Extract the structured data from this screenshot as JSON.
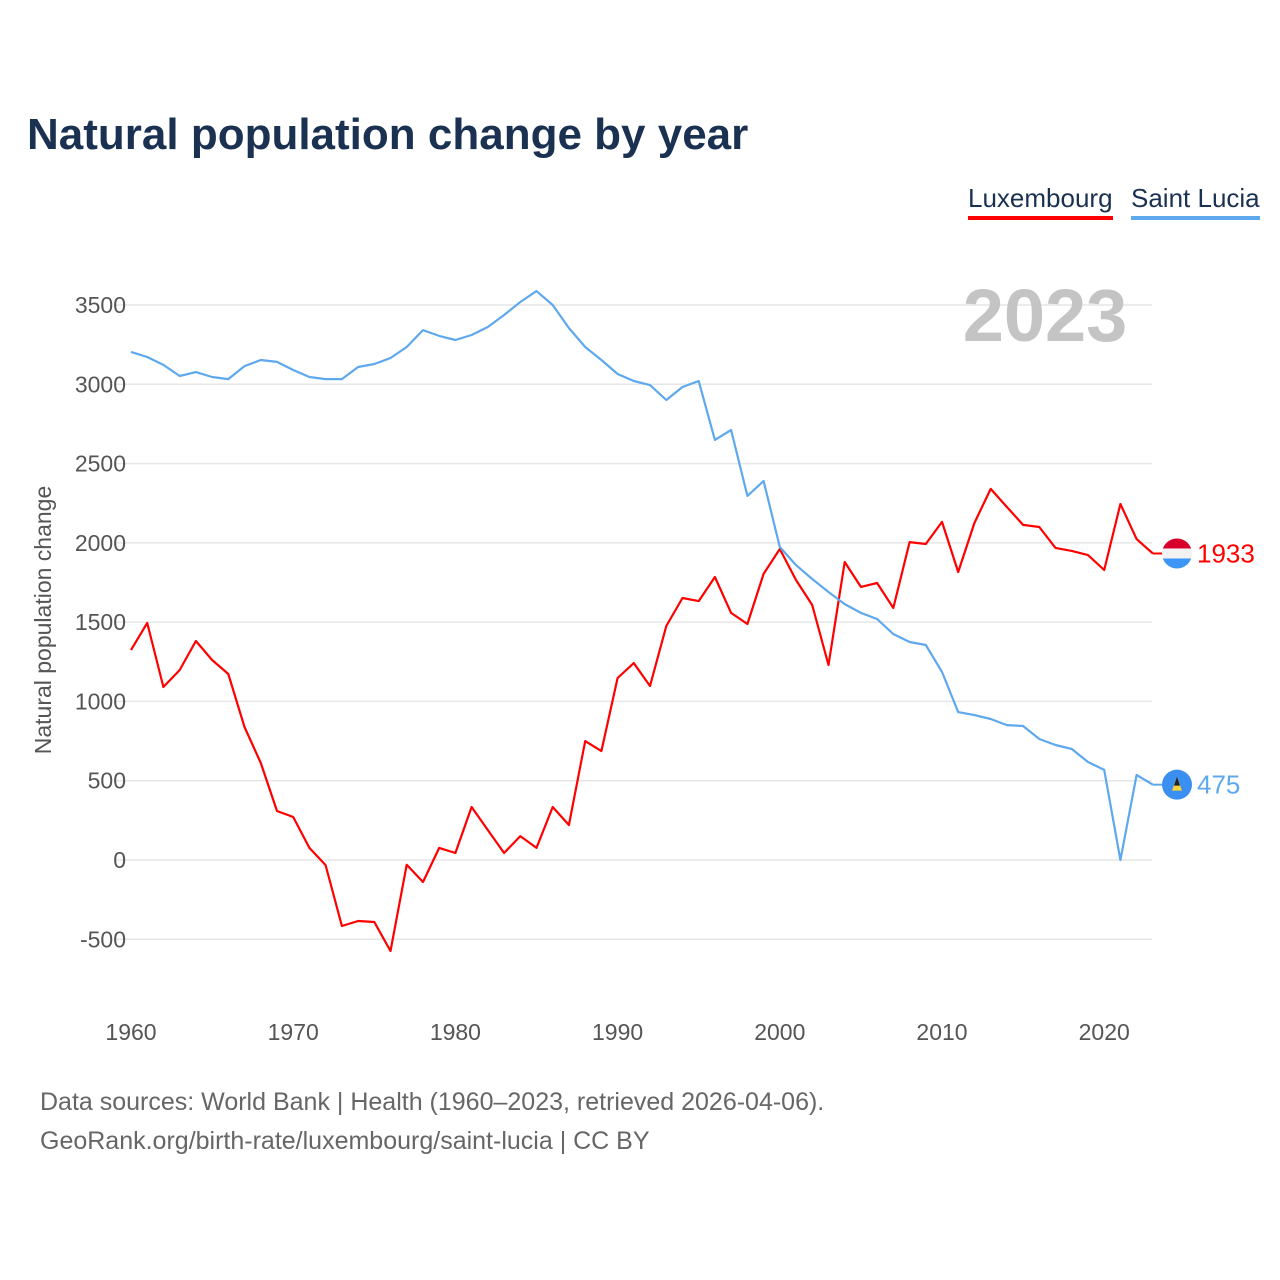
{
  "title": "Natural population change by year",
  "legend": [
    {
      "label": "Luxembourg",
      "color": "#ff0000"
    },
    {
      "label": "Saint Lucia",
      "color": "#5ea8ee"
    }
  ],
  "year_label": "2023",
  "footer": {
    "line1": "Data sources: World Bank | Health (1960–2023, retrieved 2026-04-06).",
    "line2": "GeoRank.org/birth-rate/luxembourg/saint-lucia | CC BY"
  },
  "chart_data": {
    "type": "line",
    "title": "Natural population change by year",
    "xlabel": "",
    "ylabel": "Natural population change",
    "xlim": [
      1960,
      2023
    ],
    "ylim": [
      -750,
      3700
    ],
    "x_ticks": [
      "1960",
      "1970",
      "1980",
      "1990",
      "2000",
      "2010",
      "2020"
    ],
    "y_ticks": [
      "-500",
      "0",
      "500",
      "1000",
      "1500",
      "2000",
      "2500",
      "3000",
      "3500"
    ],
    "grid": true,
    "legend_position": "top-right",
    "x_start": 1960,
    "series": [
      {
        "name": "Luxembourg",
        "color": "#ff0000",
        "end_label": "1933",
        "values": [
          1324,
          1495,
          1091,
          1198,
          1381,
          1261,
          1173,
          839,
          612,
          309,
          271,
          76,
          -32,
          -416,
          -385,
          -391,
          -574,
          -30,
          -139,
          76,
          44,
          334,
          189,
          44,
          151,
          76,
          334,
          221,
          750,
          687,
          1148,
          1242,
          1097,
          1476,
          1652,
          1633,
          1785,
          1558,
          1488,
          1804,
          1961,
          1766,
          1608,
          1230,
          1879,
          1722,
          1747,
          1589,
          2005,
          1993,
          2132,
          1816,
          2125,
          2340,
          2226,
          2113,
          2100,
          1968,
          1949,
          1923,
          1829,
          2245,
          2024,
          1933
        ]
      },
      {
        "name": "Saint Lucia",
        "color": "#5ea8ee",
        "end_label": "475",
        "values": [
          3204,
          3172,
          3122,
          3052,
          3077,
          3046,
          3033,
          3115,
          3153,
          3141,
          3090,
          3046,
          3033,
          3033,
          3109,
          3128,
          3166,
          3235,
          3342,
          3305,
          3279,
          3311,
          3361,
          3437,
          3519,
          3588,
          3500,
          3355,
          3235,
          3153,
          3065,
          3021,
          2995,
          2901,
          2983,
          3021,
          2649,
          2712,
          2296,
          2390,
          1974,
          1860,
          1772,
          1690,
          1614,
          1558,
          1520,
          1425,
          1375,
          1356,
          1186,
          933,
          914,
          889,
          851,
          845,
          763,
          725,
          700,
          618,
          568,
          0,
          536,
          475
        ]
      }
    ]
  }
}
